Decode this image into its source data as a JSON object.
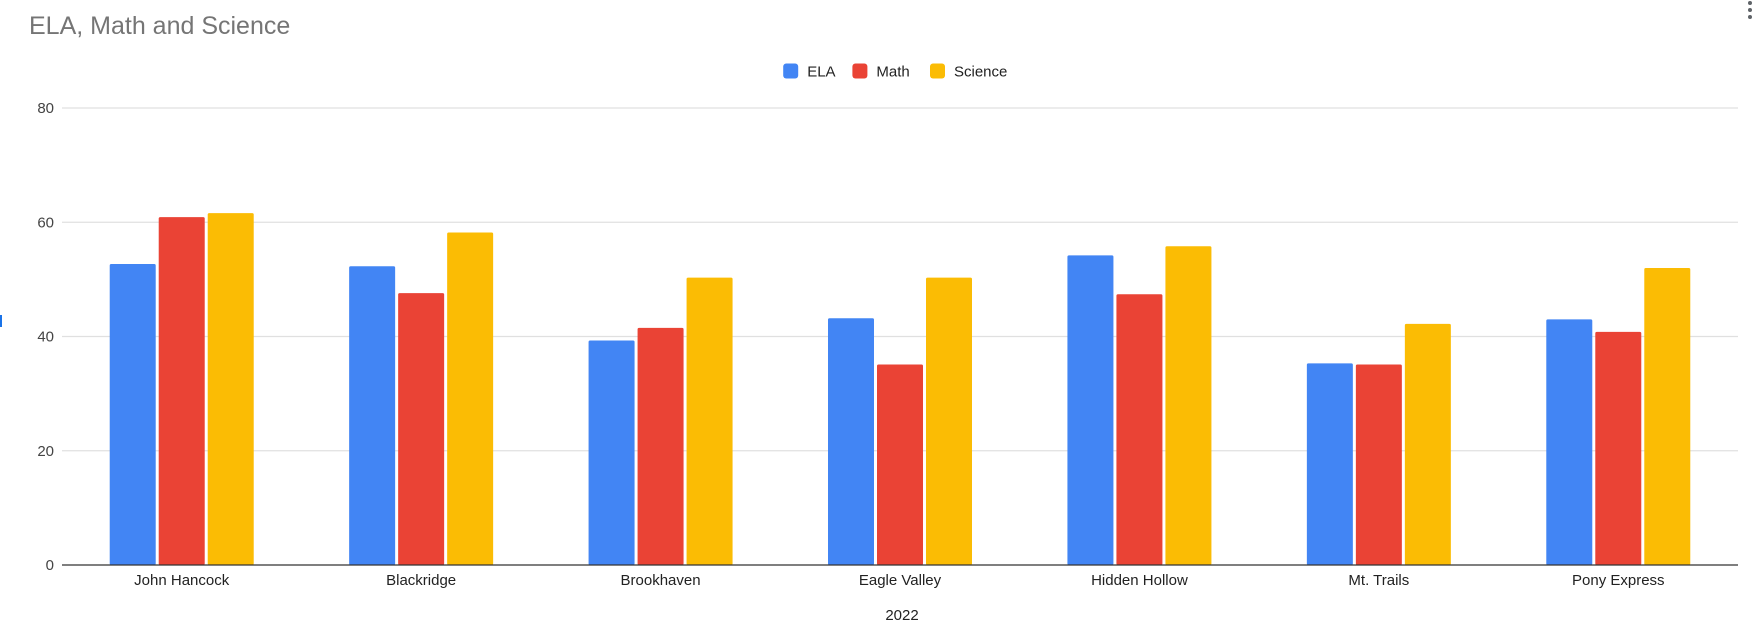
{
  "chart_data": {
    "type": "bar",
    "title": "ELA, Math and Science",
    "xlabel": "2022",
    "ylabel": "",
    "ylim": [
      0,
      80
    ],
    "yticks": [
      0,
      20,
      40,
      60,
      80
    ],
    "grid": true,
    "legend_position": "top-center",
    "categories": [
      "John Hancock",
      "Blackridge",
      "Brookhaven",
      "Eagle Valley",
      "Hidden Hollow",
      "Mt. Trails",
      "Pony Express"
    ],
    "series": [
      {
        "name": "ELA",
        "color": "#4285f4",
        "values": [
          52.7,
          52.3,
          39.3,
          43.2,
          54.2,
          35.3,
          43.0
        ]
      },
      {
        "name": "Math",
        "color": "#ea4335",
        "values": [
          60.9,
          47.6,
          41.5,
          35.1,
          47.4,
          35.1,
          40.8
        ]
      },
      {
        "name": "Science",
        "color": "#fbbc04",
        "values": [
          61.6,
          58.2,
          50.3,
          50.3,
          55.8,
          42.2,
          52.0
        ]
      }
    ]
  },
  "ui": {
    "menu_icon": "more-vert-icon"
  }
}
